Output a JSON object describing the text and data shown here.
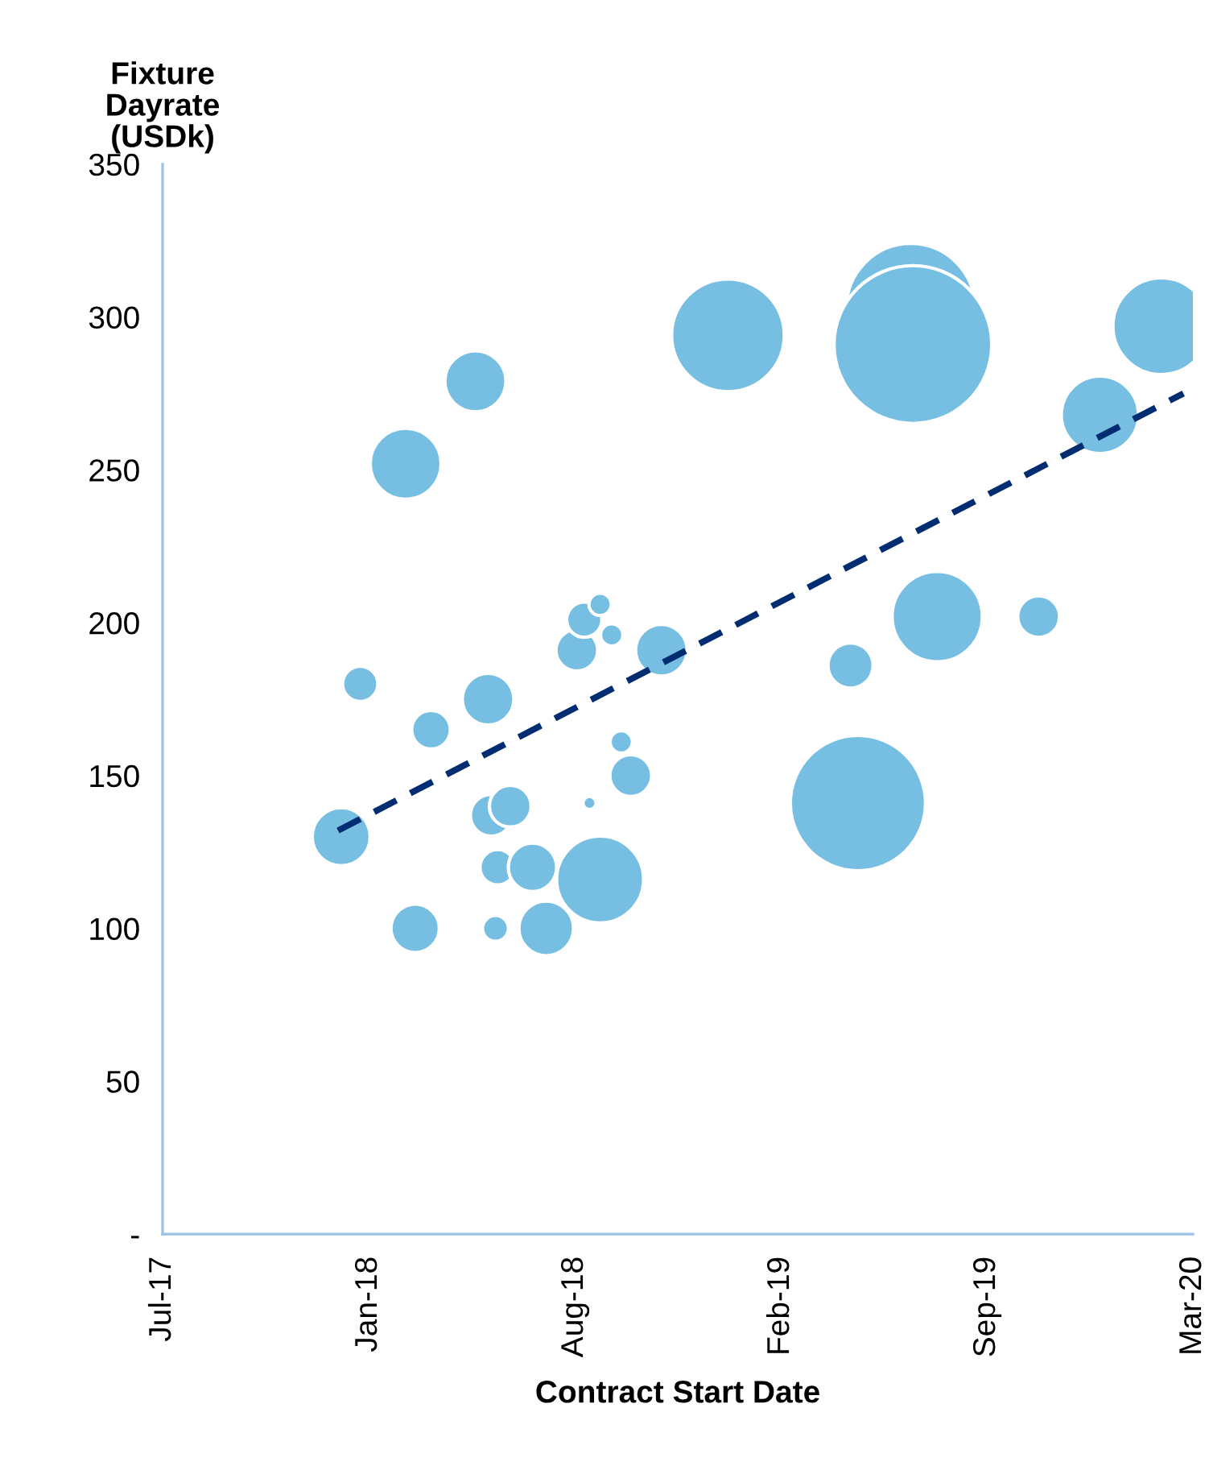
{
  "chart_data": {
    "type": "bubble",
    "xlabel": "Contract Start Date",
    "ylabel": "Fixture\nDayrate\n(USDk)",
    "xlim": [
      "2017-07-20",
      "2020-03-21"
    ],
    "xticks": [
      {
        "value": "2017-07-20",
        "label": "Jul-17"
      },
      {
        "value": "2018-01-31",
        "label": "Jan-18"
      },
      {
        "value": "2018-08-14",
        "label": "Aug-18"
      },
      {
        "value": "2019-02-25",
        "label": "Feb-19"
      },
      {
        "value": "2019-09-08",
        "label": "Sep-19"
      },
      {
        "value": "2020-03-21",
        "label": "Mar-20"
      }
    ],
    "ylim": [
      0,
      350
    ],
    "yticks": [
      {
        "value": 0,
        "label": "-"
      },
      50,
      100,
      150,
      200,
      250,
      300,
      350
    ],
    "grid": false,
    "series": [
      {
        "color": "#77bfe2",
        "x": [
          "2018-01-05",
          "2018-01-23",
          "2018-03-31",
          "2018-05-24",
          "2018-05-27",
          "2018-06-14",
          "2018-06-02",
          "2018-07-05",
          "2018-03-16",
          "2018-05-31",
          "2018-07-18",
          "2018-09-07",
          "2018-08-28",
          "2018-10-06",
          "2018-09-27",
          "2018-08-16",
          "2018-08-23",
          "2018-09-07",
          "2018-09-18",
          "2018-11-04",
          "2019-01-06",
          "2019-06-28",
          "2019-06-30",
          "2020-02-20",
          "2019-12-24",
          "2019-07-23",
          "2019-10-27",
          "2019-05-02",
          "2019-05-09",
          "2018-03-07",
          "2018-05-12"
        ],
        "values": [
          130,
          180,
          165,
          175,
          137,
          140,
          120,
          120,
          100,
          100,
          100,
          116,
          141,
          150,
          161,
          191,
          201,
          206,
          196,
          191,
          294,
          303,
          291,
          297,
          268,
          202,
          202,
          186,
          141,
          252,
          279
        ],
        "sizes": [
          0.135,
          0.05,
          0.06,
          0.107,
          0.07,
          0.07,
          0.05,
          0.094,
          0.094,
          0.027,
          0.12,
          0.304,
          0.007,
          0.07,
          0.02,
          0.07,
          0.05,
          0.02,
          0.02,
          0.107,
          0.51,
          0.666,
          1,
          0.375,
          0.24,
          0.327,
          0.07,
          0.082,
          0.735,
          0.202,
          0.15
        ]
      },
      {
        "type": "line",
        "color": "#002d72",
        "line_style": "dashed",
        "x": [
          "2018-01-02",
          "2020-03-12"
        ],
        "values": [
          132,
          275
        ]
      }
    ]
  }
}
